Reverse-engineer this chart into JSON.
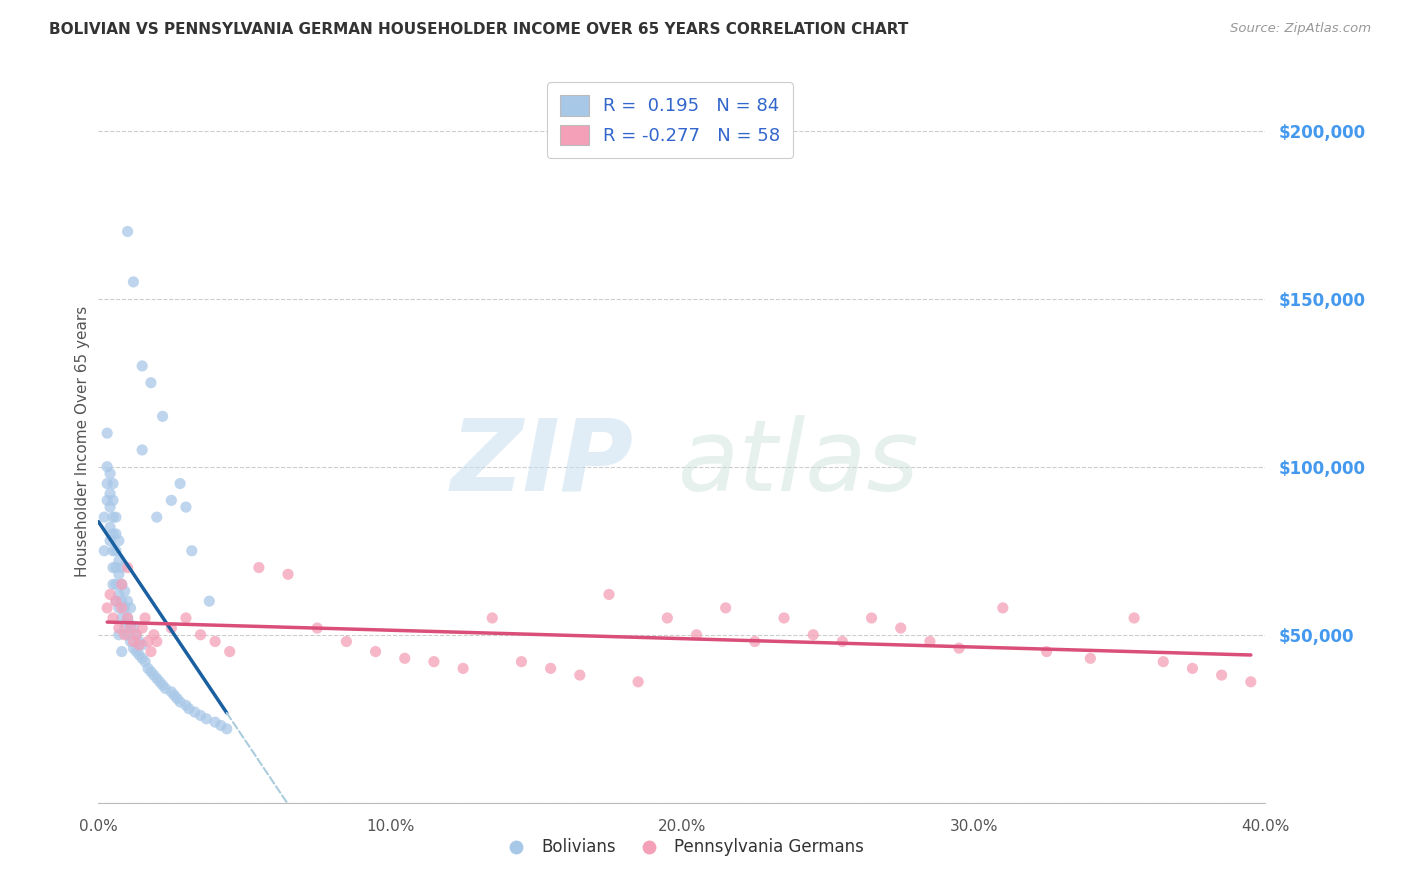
{
  "title": "BOLIVIAN VS PENNSYLVANIA GERMAN HOUSEHOLDER INCOME OVER 65 YEARS CORRELATION CHART",
  "source": "Source: ZipAtlas.com",
  "ylabel": "Householder Income Over 65 years",
  "bolivian_R": 0.195,
  "bolivian_N": 84,
  "pennger_R": -0.277,
  "pennger_N": 58,
  "blue_color": "#a8c8e8",
  "pink_color": "#f4a0b8",
  "trend_blue": "#1a5fa0",
  "trend_pink": "#d94f7a",
  "dashed_color": "#aaccdd",
  "legend_text_color": "#3366cc",
  "background": "#ffffff",
  "grid_color": "#cccccc",
  "right_axis_color": "#4499ee",
  "xlim": [
    0.0,
    0.4
  ],
  "ylim": [
    0,
    215000
  ],
  "yticks": [
    0,
    50000,
    100000,
    150000,
    200000
  ],
  "ytick_labels": [
    "",
    "$50,000",
    "$100,000",
    "$150,000",
    "$200,000"
  ],
  "xticks": [
    0.0,
    0.1,
    0.2,
    0.3,
    0.4
  ],
  "xtick_labels": [
    "0.0%",
    "10.0%",
    "20.0%",
    "30.0%",
    "40.0%"
  ],
  "bolivian_x": [
    0.002,
    0.002,
    0.003,
    0.003,
    0.003,
    0.003,
    0.004,
    0.004,
    0.004,
    0.004,
    0.004,
    0.005,
    0.005,
    0.005,
    0.005,
    0.005,
    0.005,
    0.005,
    0.006,
    0.006,
    0.006,
    0.006,
    0.006,
    0.006,
    0.007,
    0.007,
    0.007,
    0.007,
    0.007,
    0.008,
    0.008,
    0.008,
    0.008,
    0.009,
    0.009,
    0.009,
    0.01,
    0.01,
    0.01,
    0.011,
    0.011,
    0.011,
    0.012,
    0.012,
    0.013,
    0.013,
    0.014,
    0.014,
    0.015,
    0.015,
    0.016,
    0.017,
    0.018,
    0.019,
    0.02,
    0.021,
    0.022,
    0.023,
    0.025,
    0.026,
    0.027,
    0.028,
    0.03,
    0.031,
    0.033,
    0.035,
    0.037,
    0.04,
    0.042,
    0.044,
    0.015,
    0.02,
    0.025,
    0.03,
    0.015,
    0.018,
    0.022,
    0.028,
    0.032,
    0.038,
    0.01,
    0.012,
    0.007,
    0.008
  ],
  "bolivian_y": [
    75000,
    85000,
    90000,
    95000,
    100000,
    110000,
    78000,
    82000,
    88000,
    92000,
    98000,
    65000,
    70000,
    75000,
    80000,
    85000,
    90000,
    95000,
    60000,
    65000,
    70000,
    75000,
    80000,
    85000,
    58000,
    62000,
    68000,
    72000,
    78000,
    55000,
    60000,
    65000,
    70000,
    52000,
    58000,
    63000,
    50000,
    55000,
    60000,
    48000,
    53000,
    58000,
    46000,
    52000,
    45000,
    50000,
    44000,
    48000,
    43000,
    47000,
    42000,
    40000,
    39000,
    38000,
    37000,
    36000,
    35000,
    34000,
    33000,
    32000,
    31000,
    30000,
    29000,
    28000,
    27000,
    26000,
    25000,
    24000,
    23000,
    22000,
    105000,
    85000,
    90000,
    88000,
    130000,
    125000,
    115000,
    95000,
    75000,
    60000,
    170000,
    155000,
    50000,
    45000
  ],
  "pennger_x": [
    0.003,
    0.004,
    0.005,
    0.006,
    0.007,
    0.008,
    0.008,
    0.009,
    0.01,
    0.011,
    0.012,
    0.013,
    0.014,
    0.015,
    0.016,
    0.017,
    0.018,
    0.019,
    0.02,
    0.025,
    0.03,
    0.035,
    0.04,
    0.045,
    0.055,
    0.065,
    0.075,
    0.085,
    0.095,
    0.105,
    0.115,
    0.125,
    0.135,
    0.145,
    0.155,
    0.165,
    0.175,
    0.185,
    0.195,
    0.205,
    0.215,
    0.225,
    0.235,
    0.245,
    0.255,
    0.265,
    0.275,
    0.285,
    0.295,
    0.31,
    0.325,
    0.34,
    0.355,
    0.365,
    0.375,
    0.385,
    0.395,
    0.01
  ],
  "pennger_y": [
    58000,
    62000,
    55000,
    60000,
    52000,
    58000,
    65000,
    50000,
    55000,
    52000,
    48000,
    50000,
    47000,
    52000,
    55000,
    48000,
    45000,
    50000,
    48000,
    52000,
    55000,
    50000,
    48000,
    45000,
    70000,
    68000,
    52000,
    48000,
    45000,
    43000,
    42000,
    40000,
    55000,
    42000,
    40000,
    38000,
    62000,
    36000,
    55000,
    50000,
    58000,
    48000,
    55000,
    50000,
    48000,
    55000,
    52000,
    48000,
    46000,
    58000,
    45000,
    43000,
    55000,
    42000,
    40000,
    38000,
    36000,
    70000
  ]
}
